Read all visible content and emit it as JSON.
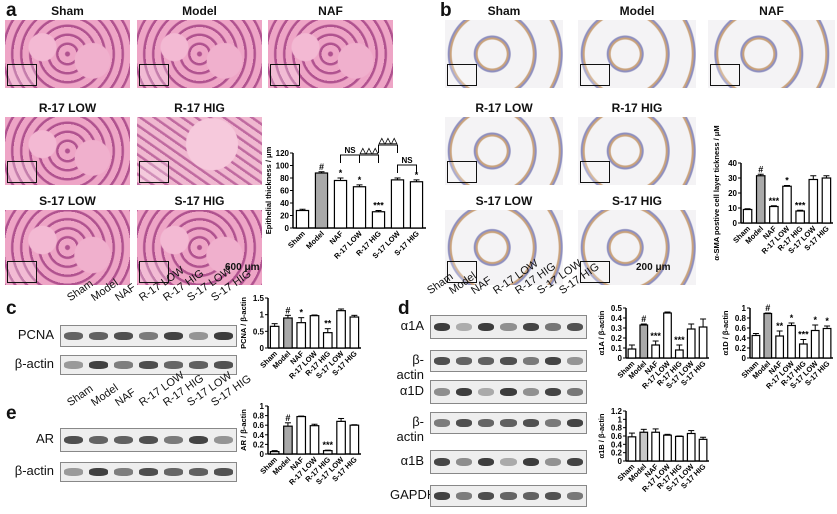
{
  "panels": {
    "a": "a",
    "b": "b",
    "c": "c",
    "d": "d",
    "e": "e"
  },
  "panel_a": {
    "titles": [
      "Sham",
      "Model",
      "NAF",
      "R-17 LOW",
      "R-17 HIG",
      "S-17 LOW",
      "S-17 HIG"
    ],
    "scale_bar": "600 μm"
  },
  "panel_b": {
    "titles": [
      "Sham",
      "Model",
      "NAF",
      "R-17 LOW",
      "R-17 HIG",
      "S-17 LOW",
      "S-17 HIG"
    ],
    "scale_bar": "200 μm"
  },
  "lanes": [
    "Sham",
    "Model",
    "NAF",
    "R-17 LOW",
    "R-17 HIG",
    "S-17 LOW",
    "S-17 HIG"
  ],
  "blots": {
    "c": [
      "PCNA",
      "β-actin"
    ],
    "e": [
      "AR",
      "β-actin"
    ],
    "d": [
      "α1A",
      "β-actin",
      "α1D",
      "β-actin",
      "α1B",
      "GAPDH"
    ]
  },
  "colors": {
    "model_bar": "#a9a9a9",
    "other_bars": "#ffffff",
    "he_stain": "#e89bbf",
    "ihc_stain": "#c08a5a"
  },
  "chart_data": [
    {
      "id": "a",
      "type": "bar",
      "ylabel": "Epithelial thickness / μm",
      "categories": [
        "Sham",
        "Model",
        "NAF",
        "R-17 LOW",
        "R-17 HIG",
        "S-17 LOW",
        "S-17 HIG"
      ],
      "values": [
        28,
        88,
        76,
        66,
        26,
        77,
        74
      ],
      "errors": [
        2,
        2,
        4,
        3,
        2,
        3,
        3
      ],
      "ylim": [
        0,
        120
      ],
      "yticks": [
        0,
        20,
        40,
        60,
        80,
        100,
        120
      ],
      "annotations": [
        "",
        "#",
        "*",
        "*",
        "***",
        "",
        "*"
      ],
      "brackets": [
        "NS",
        "△△△",
        "NS",
        "△△△"
      ]
    },
    {
      "id": "b",
      "type": "bar",
      "ylabel": "α-SMA postive cell layer tickness / μM",
      "categories": [
        "Sham",
        "Model",
        "NAF",
        "R-17 LOW",
        "R-17 HIG",
        "S-17 LOW",
        "S-17 HIG"
      ],
      "values": [
        9,
        31.5,
        11,
        24.5,
        8,
        29,
        30
      ],
      "errors": [
        0.5,
        1,
        0.5,
        0.5,
        0.5,
        2.5,
        1.5
      ],
      "ylim": [
        0,
        40
      ],
      "yticks": [
        0,
        10,
        20,
        30,
        40
      ],
      "annotations": [
        "",
        "#",
        "***",
        "*",
        "***",
        "",
        ""
      ]
    },
    {
      "id": "c",
      "type": "bar",
      "ylabel": "PCNA / β-actin",
      "categories": [
        "Sham",
        "Model",
        "NAF",
        "R-17 LOW",
        "R-17 HIG",
        "S-17 LOW",
        "S-17 HIG"
      ],
      "values": [
        0.65,
        0.9,
        0.76,
        0.97,
        0.46,
        1.12,
        0.93
      ],
      "errors": [
        0.08,
        0.08,
        0.15,
        0.02,
        0.12,
        0.05,
        0.05
      ],
      "ylim": [
        0,
        1.5
      ],
      "yticks": [
        0,
        0.5,
        1.0,
        1.5
      ],
      "annotations": [
        "",
        "#",
        "*",
        "",
        "**",
        "",
        ""
      ]
    },
    {
      "id": "e",
      "type": "bar",
      "ylabel": "AR / β-actin",
      "categories": [
        "Sham",
        "Model",
        "NAF",
        "R-17 LOW",
        "R-17 HIG",
        "S-17 LOW",
        "S-17 HIG"
      ],
      "values": [
        0.05,
        0.58,
        0.78,
        0.59,
        0.07,
        0.68,
        0.6
      ],
      "errors": [
        0.02,
        0.07,
        0.01,
        0.03,
        0.01,
        0.06,
        0.01
      ],
      "ylim": [
        0,
        1.0
      ],
      "yticks": [
        0,
        0.2,
        0.4,
        0.6,
        0.8,
        1.0
      ],
      "annotations": [
        "",
        "#",
        "",
        "",
        "***",
        "",
        ""
      ]
    },
    {
      "id": "d1A",
      "type": "bar",
      "ylabel": "α1A / β-actin",
      "categories": [
        "Sham",
        "Model",
        "NAF",
        "R-17 LOW",
        "R-17 HIG",
        "S-17 LOW",
        "S-17 HIG"
      ],
      "values": [
        0.09,
        0.33,
        0.13,
        0.45,
        0.08,
        0.29,
        0.31
      ],
      "errors": [
        0.04,
        0.01,
        0.04,
        0.01,
        0.05,
        0.05,
        0.08
      ],
      "ylim": [
        0,
        0.5
      ],
      "yticks": [
        0,
        0.1,
        0.2,
        0.3,
        0.4,
        0.5
      ],
      "annotations": [
        "",
        "#",
        "***",
        "",
        "***",
        "",
        ""
      ]
    },
    {
      "id": "d1D",
      "type": "bar",
      "ylabel": "α1D / β-actin",
      "categories": [
        "Sham",
        "Model",
        "NAF",
        "R-17 LOW",
        "R-17 HIG",
        "S-17 LOW",
        "S-17 HIG"
      ],
      "values": [
        0.45,
        0.89,
        0.44,
        0.65,
        0.28,
        0.55,
        0.59
      ],
      "errors": [
        0.04,
        0.01,
        0.1,
        0.05,
        0.09,
        0.11,
        0.05
      ],
      "ylim": [
        0,
        1.0
      ],
      "yticks": [
        0,
        0.2,
        0.4,
        0.6,
        0.8,
        1.0
      ],
      "annotations": [
        "",
        "#",
        "**",
        "*",
        "***",
        "*",
        "*"
      ]
    },
    {
      "id": "d1B",
      "type": "bar",
      "ylabel": "α1B / β-actin",
      "categories": [
        "Sham",
        "Model",
        "NAF",
        "R-17 LOW",
        "R-17 HIG",
        "S-17 LOW",
        "S-17 HIG"
      ],
      "values": [
        0.58,
        0.69,
        0.69,
        0.62,
        0.59,
        0.66,
        0.52
      ],
      "errors": [
        0.09,
        0.07,
        0.08,
        0.02,
        0.01,
        0.07,
        0.05
      ],
      "ylim": [
        0,
        1.2
      ],
      "yticks": [
        0,
        0.2,
        0.4,
        0.6,
        0.8,
        1.0,
        1.2
      ],
      "annotations": [
        "",
        "",
        "",
        "",
        "",
        "",
        ""
      ]
    }
  ]
}
